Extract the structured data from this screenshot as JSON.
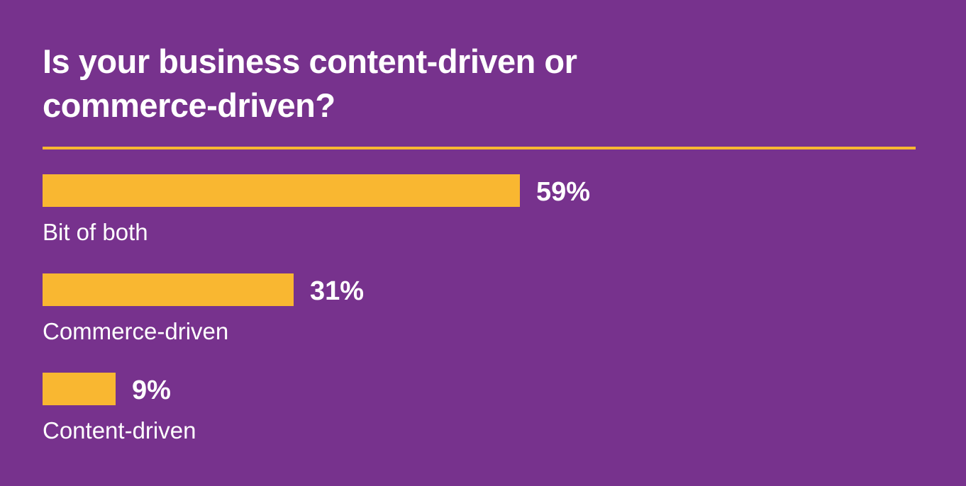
{
  "title": "Is your business content-driven or commerce-driven?",
  "colors": {
    "background": "#77328d",
    "bar": "#f9b731",
    "text": "#ffffff"
  },
  "chart_data": {
    "type": "bar",
    "orientation": "horizontal",
    "title": "Is your business content-driven or commerce-driven?",
    "categories": [
      "Bit of both",
      "Commerce-driven",
      "Content-driven"
    ],
    "values": [
      59,
      31,
      9
    ],
    "value_labels": [
      "59%",
      "31%",
      "9%"
    ],
    "unit": "%",
    "xlabel": "",
    "ylabel": "",
    "grid": false,
    "legend": null
  },
  "rows": [
    {
      "label": "Bit of both",
      "value": 59,
      "value_label": "59%"
    },
    {
      "label": "Commerce-driven",
      "value": 31,
      "value_label": "31%"
    },
    {
      "label": "Content-driven",
      "value": 9,
      "value_label": "9%"
    }
  ]
}
